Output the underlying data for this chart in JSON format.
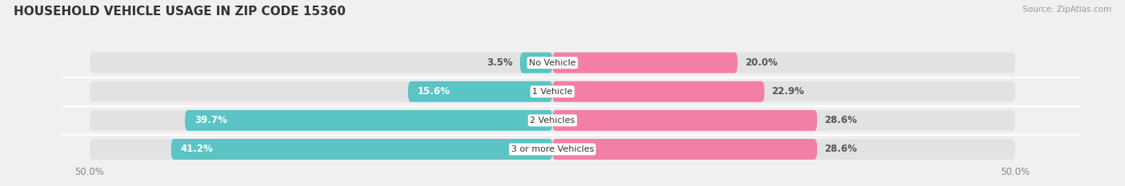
{
  "title": "HOUSEHOLD VEHICLE USAGE IN ZIP CODE 15360",
  "source": "Source: ZipAtlas.com",
  "categories": [
    "No Vehicle",
    "1 Vehicle",
    "2 Vehicles",
    "3 or more Vehicles"
  ],
  "owner_values": [
    3.5,
    15.6,
    39.7,
    41.2
  ],
  "renter_values": [
    20.0,
    22.9,
    28.6,
    28.6
  ],
  "owner_color": "#5bc4c4",
  "renter_color": "#f47fa4",
  "axis_limit": 50.0,
  "bg_color": "#f0f0f0",
  "bar_bg_color": "#e2e2e2",
  "bar_height": 0.72,
  "bar_gap": 0.08,
  "title_fontsize": 11,
  "label_fontsize": 8.5,
  "tick_fontsize": 8.5,
  "legend_fontsize": 8.5,
  "source_fontsize": 7.5,
  "category_fontsize": 8.0,
  "owner_label_color_threshold": 12
}
